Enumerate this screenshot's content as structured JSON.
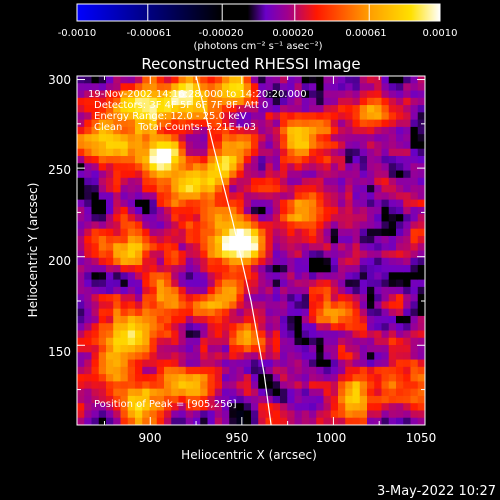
{
  "chart_data": {
    "type": "heatmap",
    "title": "Reconstructed RHESSI Image",
    "xlabel": "Heliocentric X (arcsec)",
    "ylabel": "Heliocentric Y (arcsec)",
    "xlim": [
      860,
      1050
    ],
    "ylim": [
      105,
      302
    ],
    "x_ticks": [
      900,
      950,
      1000,
      1050
    ],
    "y_ticks": [
      150,
      200,
      250,
      300
    ],
    "colorbar": {
      "ticks": [
        "-0.0010",
        "-0.00061",
        "-0.00020",
        "0.00020",
        "0.00061",
        "0.0010"
      ],
      "tick_values": [
        -0.001,
        -0.00061,
        -0.0002,
        0.0002,
        0.00061,
        0.001
      ],
      "range": [
        -0.001,
        0.001
      ],
      "unit": "(photons cm⁻² s⁻¹ asec⁻²)",
      "colors": [
        "#0000ff",
        "#000000",
        "#6a00c8",
        "#ff1800",
        "#ff9a00",
        "#ffffff"
      ]
    },
    "annotations": [
      "19-Nov-2002 14:16:28.000 to 14:20:20.000",
      "Detectors: 3F 4F 5F 6F 7F 8F, Att 0",
      "Energy Range: 12.0 - 25.0 keV",
      "Clean     Total Counts: 5.21E+03"
    ],
    "peak_label": "Position of Peak = [905,256]",
    "peak": [
      905,
      256
    ],
    "limb_points": [
      [
        925,
        302
      ],
      [
        935,
        260
      ],
      [
        945,
        220
      ],
      [
        955,
        175
      ],
      [
        962,
        135
      ],
      [
        966,
        105
      ]
    ],
    "sources": [
      {
        "x": 905,
        "y": 256,
        "value": 0.001
      },
      {
        "x": 895,
        "y": 285,
        "value": 0.00085
      },
      {
        "x": 920,
        "y": 290,
        "value": 0.0008
      },
      {
        "x": 945,
        "y": 295,
        "value": 0.0006
      },
      {
        "x": 942,
        "y": 255,
        "value": 0.0008
      },
      {
        "x": 925,
        "y": 240,
        "value": 0.0007
      },
      {
        "x": 875,
        "y": 265,
        "value": 0.00075
      },
      {
        "x": 888,
        "y": 205,
        "value": 0.0008
      },
      {
        "x": 935,
        "y": 215,
        "value": 0.0006
      },
      {
        "x": 952,
        "y": 205,
        "value": 0.00085
      },
      {
        "x": 985,
        "y": 265,
        "value": 0.0006
      },
      {
        "x": 1020,
        "y": 280,
        "value": 0.0005
      },
      {
        "x": 985,
        "y": 225,
        "value": 0.0005
      },
      {
        "x": 890,
        "y": 160,
        "value": 0.0006
      },
      {
        "x": 910,
        "y": 175,
        "value": 0.00055
      },
      {
        "x": 955,
        "y": 155,
        "value": 0.00045
      },
      {
        "x": 940,
        "y": 175,
        "value": 0.0005
      },
      {
        "x": 895,
        "y": 118,
        "value": 0.00075
      },
      {
        "x": 920,
        "y": 125,
        "value": 0.0006
      },
      {
        "x": 1000,
        "y": 170,
        "value": 0.00045
      },
      {
        "x": 1010,
        "y": 120,
        "value": 0.00065
      },
      {
        "x": 880,
        "y": 140,
        "value": 0.0005
      },
      {
        "x": 1040,
        "y": 135,
        "value": 0.00035
      }
    ]
  },
  "footer": {
    "date": "3-May-2022 10:27"
  }
}
